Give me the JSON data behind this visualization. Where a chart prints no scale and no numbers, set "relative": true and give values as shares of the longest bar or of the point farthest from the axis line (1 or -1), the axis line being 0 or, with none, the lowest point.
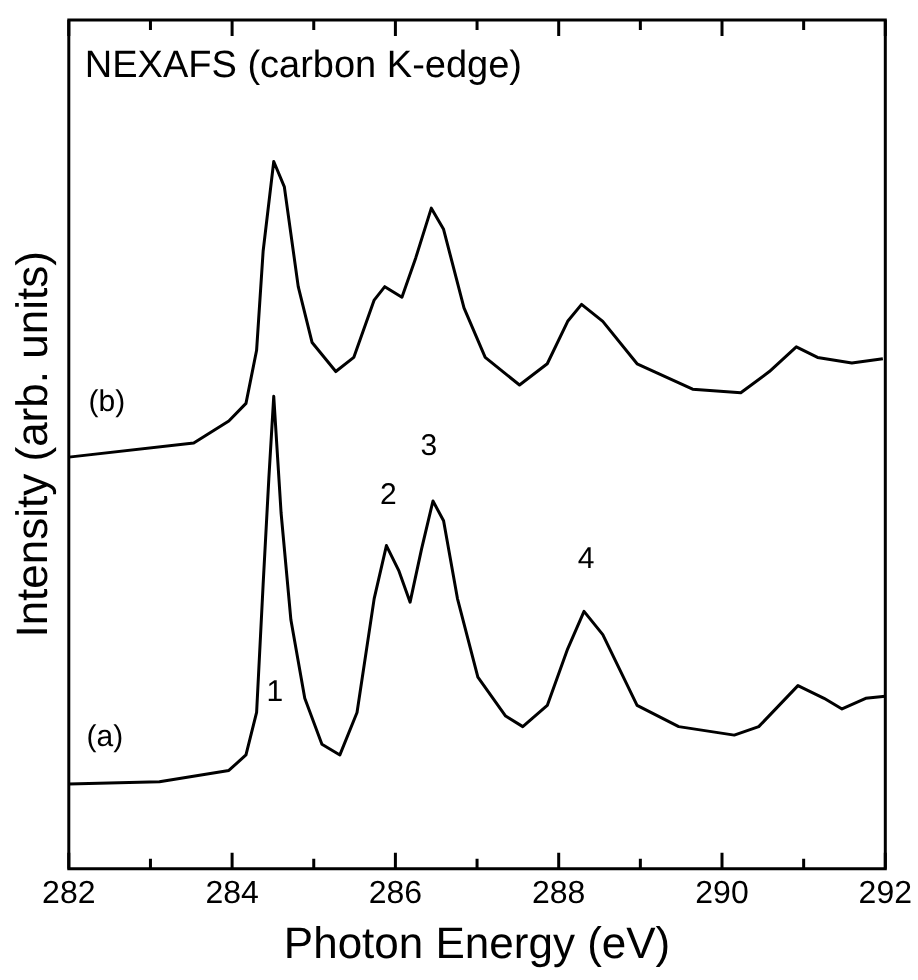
{
  "chart_data": {
    "type": "line",
    "title": "NEXAFS (carbon K-edge)",
    "xlabel": "Photon Energy (eV)",
    "ylabel": "Intensity (arb. units)",
    "relative": true,
    "xlim": [
      282,
      292
    ],
    "xticks": [
      282,
      {
        "value": 283,
        "label": null
      },
      284,
      {
        "value": 285,
        "label": null
      },
      286,
      {
        "value": 287,
        "label": null
      },
      288,
      {
        "value": 289,
        "label": null
      },
      290,
      {
        "value": 291,
        "label": null
      },
      292
    ],
    "marker": "none",
    "legend": false,
    "grid": false,
    "series": [
      {
        "color": "#000000",
        "x": [
          282.0,
          283.11,
          283.96,
          284.17,
          284.3,
          284.38,
          284.45,
          284.51,
          284.6,
          284.72,
          284.89,
          285.1,
          285.32,
          285.53,
          285.74,
          285.89,
          286.04,
          286.18,
          286.32,
          286.46,
          286.59,
          286.76,
          287.01,
          287.35,
          287.56,
          287.86,
          288.11,
          288.31,
          288.54,
          288.96,
          289.47,
          290.15,
          290.45,
          290.93,
          291.25,
          291.47,
          291.76,
          292.0
        ],
        "values": [
          0.12,
          0.123,
          0.139,
          0.161,
          0.221,
          0.402,
          0.552,
          0.668,
          0.503,
          0.352,
          0.241,
          0.176,
          0.161,
          0.221,
          0.382,
          0.457,
          0.422,
          0.377,
          0.452,
          0.52,
          0.492,
          0.382,
          0.271,
          0.216,
          0.201,
          0.231,
          0.311,
          0.364,
          0.331,
          0.231,
          0.201,
          0.189,
          0.201,
          0.259,
          0.241,
          0.226,
          0.241,
          0.244
        ]
      },
      {
        "color": "#000000",
        "x": [
          282.0,
          283.53,
          283.96,
          284.17,
          284.3,
          284.38,
          284.51,
          284.64,
          284.81,
          284.98,
          285.27,
          285.49,
          285.74,
          285.87,
          286.08,
          286.25,
          286.44,
          286.59,
          286.84,
          287.1,
          287.52,
          287.86,
          288.11,
          288.28,
          288.54,
          288.96,
          289.64,
          290.23,
          290.58,
          290.91,
          291.17,
          291.59,
          291.97
        ],
        "values": [
          0.582,
          0.602,
          0.633,
          0.658,
          0.733,
          0.873,
          1.0,
          0.964,
          0.823,
          0.744,
          0.703,
          0.723,
          0.804,
          0.823,
          0.808,
          0.864,
          0.934,
          0.904,
          0.793,
          0.723,
          0.684,
          0.714,
          0.774,
          0.798,
          0.774,
          0.714,
          0.678,
          0.673,
          0.703,
          0.738,
          0.723,
          0.715,
          0.721
        ]
      }
    ],
    "annotations": [
      {
        "text": "(a)",
        "x": 282.0,
        "y": 0.12
      },
      {
        "text": "(b)",
        "x": 282.0,
        "y": 0.582
      },
      {
        "text": "1",
        "x": 284.89,
        "y": 0.241
      },
      {
        "text": "2",
        "x": 285.89,
        "y": 0.457
      },
      {
        "text": "3",
        "x": 286.46,
        "y": 0.52
      },
      {
        "text": "4",
        "x": 288.31,
        "y": 0.364
      }
    ]
  }
}
